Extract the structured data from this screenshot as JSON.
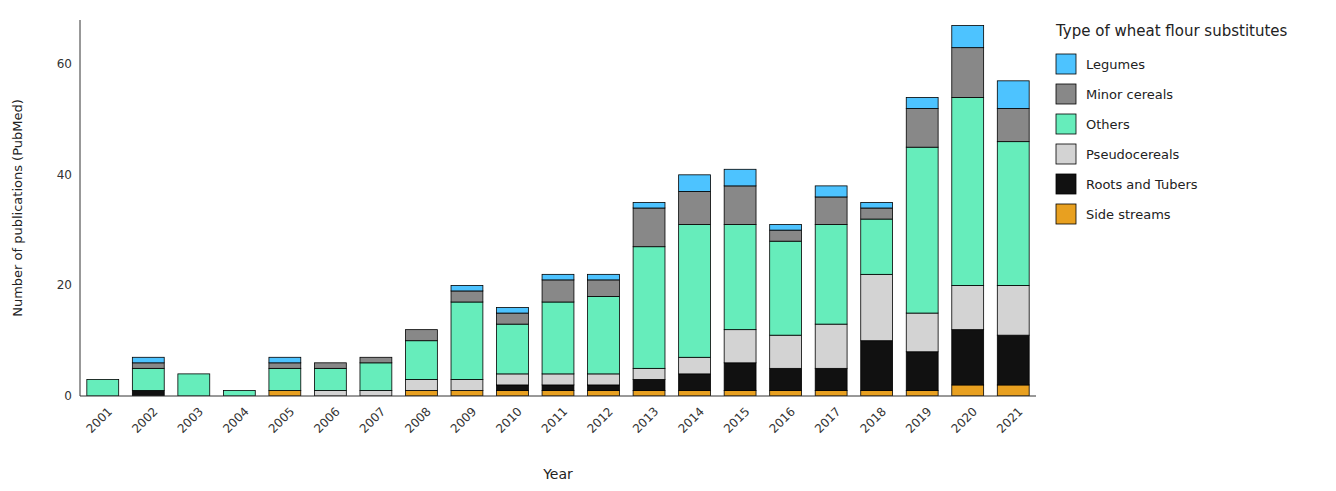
{
  "chart_data": {
    "type": "bar",
    "stacked": true,
    "xlabel": "Year",
    "ylabel": "Number of publications (PubMed)",
    "legend_title": "Type of wheat flour substitutes",
    "legend": "right",
    "grid": false,
    "categories": [
      "2001",
      "2002",
      "2003",
      "2004",
      "2005",
      "2006",
      "2007",
      "2008",
      "2009",
      "2010",
      "2011",
      "2012",
      "2013",
      "2014",
      "2015",
      "2016",
      "2017",
      "2018",
      "2019",
      "2020",
      "2021"
    ],
    "series": [
      {
        "name": "Side streams",
        "color": "#E8A020",
        "values": [
          0,
          0,
          0,
          0,
          1,
          0,
          0,
          1,
          1,
          1,
          1,
          1,
          1,
          1,
          1,
          1,
          1,
          1,
          1,
          2,
          2
        ]
      },
      {
        "name": "Roots and Tubers",
        "color": "#111111",
        "values": [
          0,
          1,
          0,
          0,
          0,
          0,
          0,
          0,
          0,
          1,
          1,
          1,
          2,
          3,
          5,
          4,
          4,
          9,
          7,
          10,
          9
        ]
      },
      {
        "name": "Pseudocereals",
        "color": "#D3D3D3",
        "values": [
          0,
          0,
          0,
          0,
          0,
          1,
          1,
          2,
          2,
          2,
          2,
          2,
          2,
          3,
          6,
          6,
          8,
          12,
          7,
          8,
          9
        ]
      },
      {
        "name": "Others",
        "color": "#66EDBB",
        "values": [
          3,
          4,
          4,
          1,
          4,
          4,
          5,
          7,
          14,
          9,
          13,
          14,
          22,
          24,
          19,
          17,
          18,
          10,
          30,
          34,
          26
        ]
      },
      {
        "name": "Minor cereals",
        "color": "#888888",
        "values": [
          0,
          1,
          0,
          0,
          1,
          1,
          1,
          2,
          2,
          2,
          4,
          3,
          7,
          6,
          7,
          2,
          5,
          2,
          7,
          9,
          6
        ]
      },
      {
        "name": "Legumes",
        "color": "#4DC3FF",
        "values": [
          0,
          1,
          0,
          0,
          1,
          0,
          0,
          0,
          1,
          1,
          1,
          1,
          1,
          3,
          3,
          1,
          2,
          1,
          2,
          4,
          5
        ]
      }
    ],
    "ylim": [
      0,
      68
    ],
    "yticks": [
      0,
      20,
      40,
      60
    ]
  }
}
